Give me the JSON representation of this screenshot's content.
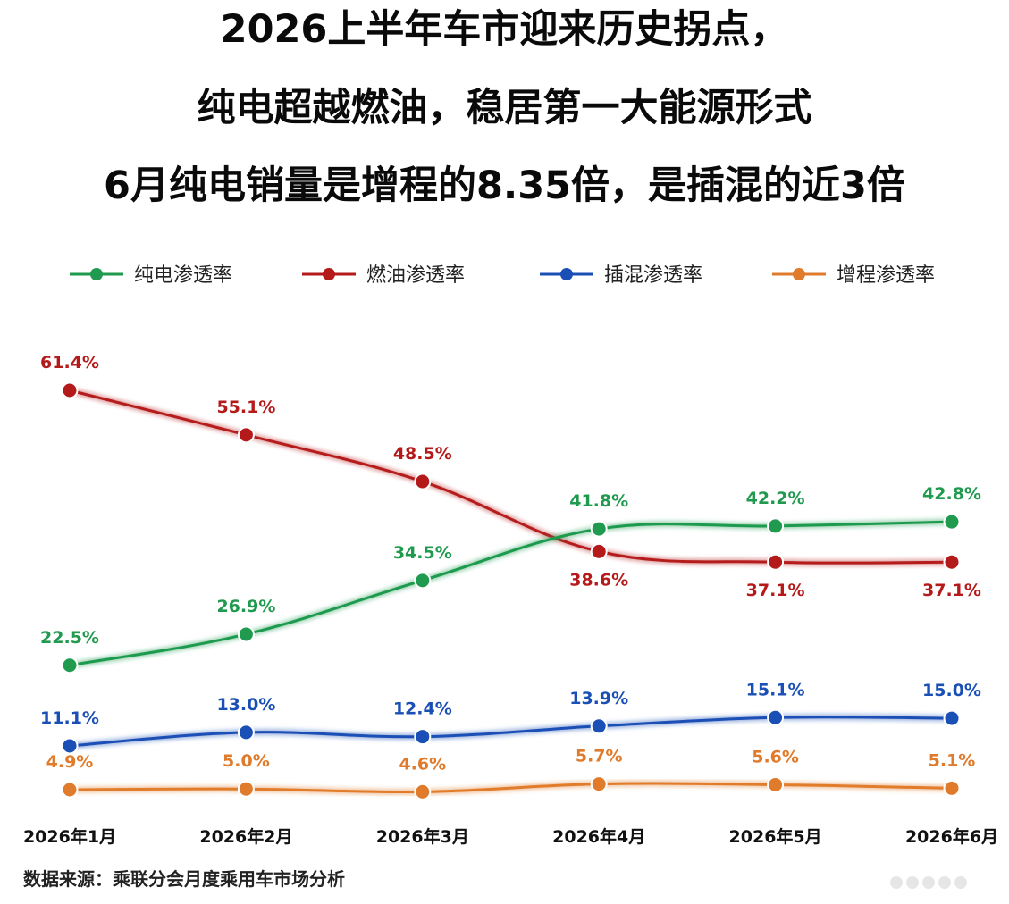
{
  "title": {
    "line1": "2026上半年车市迎来历史拐点，",
    "line2": "纯电超越燃油，稳居第一大能源形式",
    "line3": "6月纯电销量是增程的8.35倍，是插混的近3倍"
  },
  "source": "数据来源：乘联分会月度乘用车市场分析",
  "colors": {
    "bev": "#1f9a4e",
    "ice": "#b51a1a",
    "phev": "#1a4fb5",
    "erev": "#e07b2c"
  },
  "chart_data": {
    "type": "line",
    "categories": [
      "2026年1月",
      "2026年2月",
      "2026年3月",
      "2026年4月",
      "2026年5月",
      "2026年6月"
    ],
    "ylim": [
      0,
      65
    ],
    "grid": false,
    "legend_position": "top",
    "series": [
      {
        "name": "纯电渗透率",
        "color": "#1f9a4e",
        "values": [
          22.5,
          26.9,
          34.5,
          41.8,
          42.2,
          42.8
        ],
        "labels": [
          "22.5%",
          "26.9%",
          "34.5%",
          "41.8%",
          "42.2%",
          "42.8%"
        ],
        "label_side": "above"
      },
      {
        "name": "燃油渗透率",
        "color": "#b51a1a",
        "values": [
          61.4,
          55.1,
          48.5,
          38.6,
          37.1,
          37.1
        ],
        "labels": [
          "61.4%",
          "55.1%",
          "48.5%",
          "38.6%",
          "37.1%",
          "37.1%"
        ],
        "label_side": "above_then_below"
      },
      {
        "name": "插混渗透率",
        "color": "#1a4fb5",
        "values": [
          11.1,
          13.0,
          12.4,
          13.9,
          15.1,
          15.0
        ],
        "labels": [
          "11.1%",
          "13.0%",
          "12.4%",
          "13.9%",
          "15.1%",
          "15.0%"
        ],
        "label_side": "above"
      },
      {
        "name": "增程渗透率",
        "color": "#e07b2c",
        "values": [
          4.9,
          5.0,
          4.6,
          5.7,
          5.6,
          5.1
        ],
        "labels": [
          "4.9%",
          "5.0%",
          "4.6%",
          "5.7%",
          "5.6%",
          "5.1%"
        ],
        "label_side": "above"
      }
    ]
  }
}
